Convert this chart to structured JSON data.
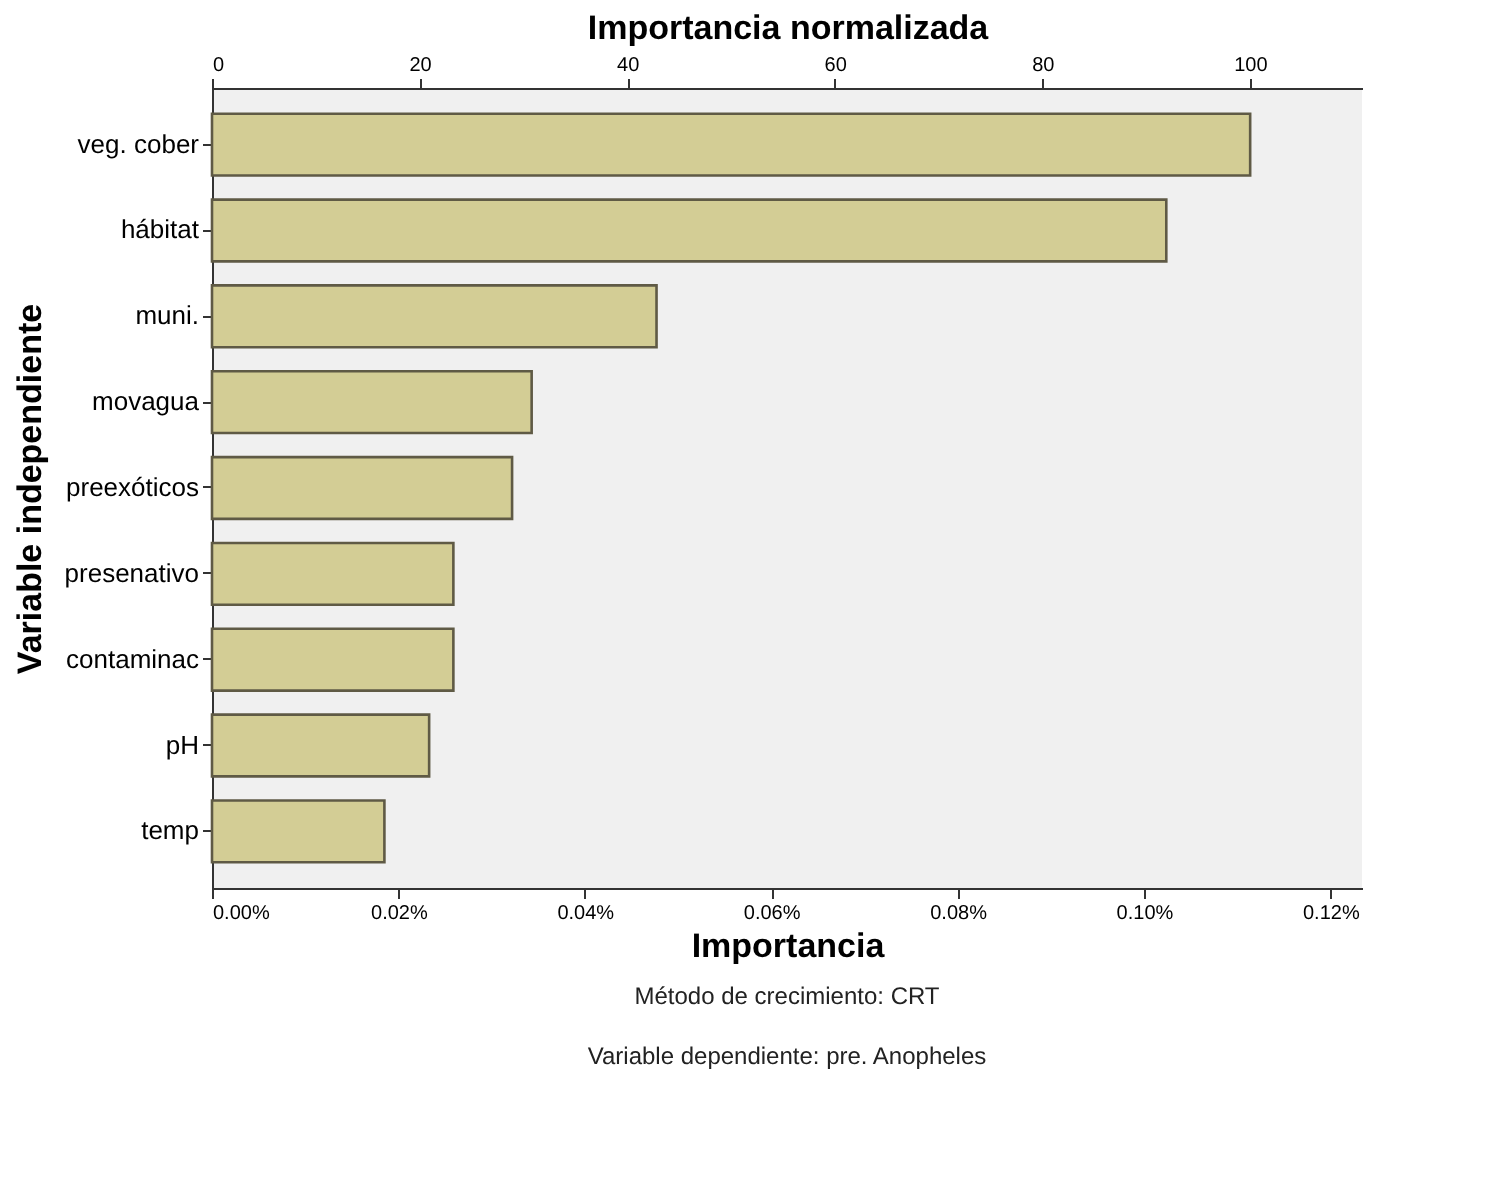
{
  "chart_data": {
    "type": "bar",
    "orientation": "horizontal",
    "xlabel": "Importancia",
    "x2label": "Importancia normalizada",
    "ylabel": "Variable independiente",
    "categories": [
      "veg. cober",
      "hábitat",
      "muni.",
      "movagua",
      "preexóticos",
      "presenativo",
      "contaminac",
      "pH",
      "temp"
    ],
    "values": [
      0.1114,
      0.1024,
      0.0477,
      0.0343,
      0.0322,
      0.0259,
      0.0259,
      0.0233,
      0.0185
    ],
    "color": "#d3cd95",
    "xlim": [
      0,
      0.1234
    ],
    "xticks": [
      {
        "value": 0,
        "label": "0.00%"
      },
      {
        "value": 0.02,
        "label": "0.02%"
      },
      {
        "value": 0.04,
        "label": "0.04%"
      },
      {
        "value": 0.06,
        "label": "0.06%"
      },
      {
        "value": 0.08,
        "label": "0.08%"
      },
      {
        "value": 0.1,
        "label": "0.10%"
      },
      {
        "value": 0.12,
        "label": "0.12%"
      }
    ],
    "x2lim": [
      0,
      110.8
    ],
    "x2ticks": [
      0,
      20,
      40,
      60,
      80,
      100
    ],
    "grid": false,
    "annotations": [
      "Método de crecimiento: CRT",
      "Variable dependiente: pre. Anopheles"
    ]
  }
}
